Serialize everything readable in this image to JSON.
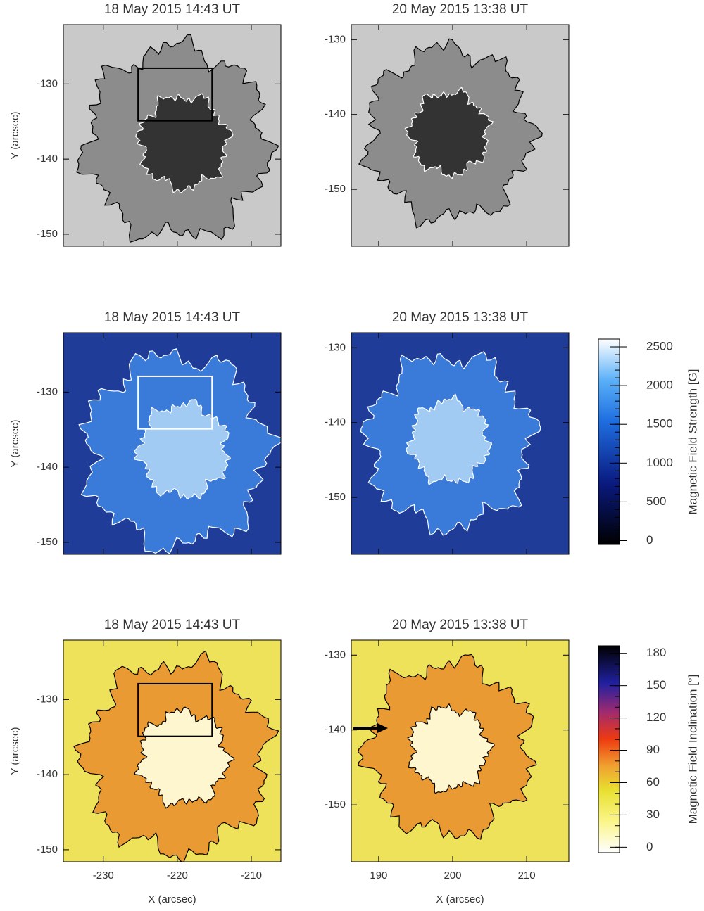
{
  "chart_data": [
    {
      "type": "image",
      "title": "18 May 2015 14:43 UT",
      "colormap": "gray",
      "ylabel": "Y (arcsec)",
      "xlim": [
        -235.4,
        -206.0
      ],
      "ylim": [
        -151.6,
        -122.1
      ],
      "xticks": [
        -230,
        -220,
        -210
      ],
      "yticks": [
        -130,
        -140,
        -150
      ],
      "show_xticklabels": false,
      "box": {
        "x": [
          -225.3,
          -215.3
        ],
        "y": [
          -134.9,
          -127.9
        ],
        "color": "#000000"
      }
    },
    {
      "type": "image",
      "title": "20 May 2015 13:38 UT",
      "colormap": "gray",
      "xlim": [
        186.3,
        215.7
      ],
      "ylim": [
        -157.6,
        -128.0
      ],
      "xticks": [
        190,
        200,
        210
      ],
      "yticks": [
        -130,
        -140,
        -150
      ],
      "show_xticklabels": false
    },
    {
      "type": "image",
      "title": "18 May 2015 14:43 UT",
      "colormap": "blue",
      "ylabel": "Y (arcsec)",
      "xlim": [
        -235.4,
        -206.0
      ],
      "ylim": [
        -151.6,
        -122.1
      ],
      "xticks": [
        -230,
        -220,
        -210
      ],
      "yticks": [
        -130,
        -140,
        -150
      ],
      "show_xticklabels": false,
      "box": {
        "x": [
          -225.3,
          -215.3
        ],
        "y": [
          -134.9,
          -127.9
        ],
        "color": "#ffffff"
      }
    },
    {
      "type": "image",
      "title": "20 May 2015 13:38 UT",
      "colormap": "blue",
      "xlim": [
        186.3,
        215.7
      ],
      "ylim": [
        -157.6,
        -128.0
      ],
      "xticks": [
        190,
        200,
        210
      ],
      "yticks": [
        -130,
        -140,
        -150
      ],
      "show_xticklabels": false
    },
    {
      "type": "image",
      "title": "18 May 2015 14:43 UT",
      "colormap": "inclination",
      "ylabel": "Y (arcsec)",
      "xlabel": "X (arcsec)",
      "xlim": [
        -235.4,
        -206.0
      ],
      "ylim": [
        -151.6,
        -122.1
      ],
      "xticks": [
        -230,
        -220,
        -210
      ],
      "yticks": [
        -130,
        -140,
        -150
      ],
      "show_xticklabels": true,
      "box": {
        "x": [
          -225.3,
          -215.3
        ],
        "y": [
          -134.9,
          -127.9
        ],
        "color": "#000000"
      }
    },
    {
      "type": "image",
      "title": "20 May 2015 13:38 UT",
      "colormap": "inclination",
      "xlabel": "X (arcsec)",
      "xlim": [
        186.3,
        215.7
      ],
      "ylim": [
        -157.6,
        -128.0
      ],
      "xticks": [
        190,
        200,
        210
      ],
      "yticks": [
        -130,
        -140,
        -150
      ],
      "show_xticklabels": true
    },
    {
      "type": "colorbar",
      "label": "Magnetic Field Strength [G]",
      "colormap": "blue",
      "ylim": [
        -50,
        2600
      ],
      "yticks": [
        0,
        500,
        1000,
        1500,
        2000,
        2500
      ],
      "minor_step": 100
    },
    {
      "type": "colorbar",
      "label": "Magnetic Field Inclination [°]",
      "colormap": "inclination",
      "ylim": [
        -5,
        187
      ],
      "yticks": [
        0,
        30,
        60,
        90,
        120,
        150,
        180
      ],
      "minor_step": 10
    }
  ]
}
